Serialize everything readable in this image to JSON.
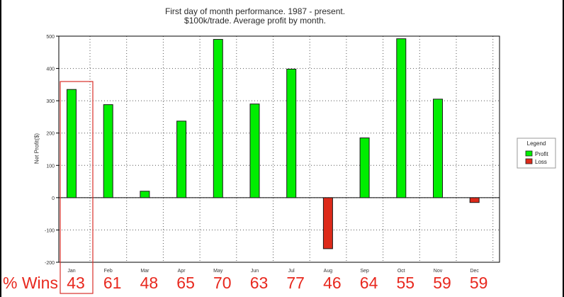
{
  "colors": {
    "profit": "#00ee00",
    "loss": "#dd2a1a",
    "axis": "#000000",
    "grid": "#555555",
    "highlight": "#d9302a",
    "wins_text": "#e8281e"
  },
  "chart_data": {
    "type": "bar",
    "title": "First day of month performance.  1987 - present.",
    "subtitle": "$100k/trade.  Average profit by month.",
    "xlabel": "",
    "ylabel": "Net Profit($)",
    "ylim": [
      -200,
      500
    ],
    "yticks": [
      -200,
      -100,
      0,
      100,
      200,
      300,
      400,
      500
    ],
    "grid": true,
    "legend": {
      "title": "Legend",
      "position": "right",
      "entries": [
        "Profit",
        "Loss"
      ]
    },
    "categories": [
      "Jan",
      "Feb",
      "Mar",
      "Apr",
      "May",
      "Jun",
      "Jul",
      "Aug",
      "Sep",
      "Oct",
      "Nov",
      "Dec"
    ],
    "values": [
      335,
      288,
      20,
      237,
      490,
      290,
      398,
      -158,
      185,
      492,
      305,
      -15
    ],
    "highlight_category": "Jan"
  },
  "wins": {
    "label": "% Wins",
    "values": [
      "43",
      "61",
      "48",
      "65",
      "70",
      "63",
      "77",
      "46",
      "64",
      "55",
      "59",
      "59"
    ]
  }
}
